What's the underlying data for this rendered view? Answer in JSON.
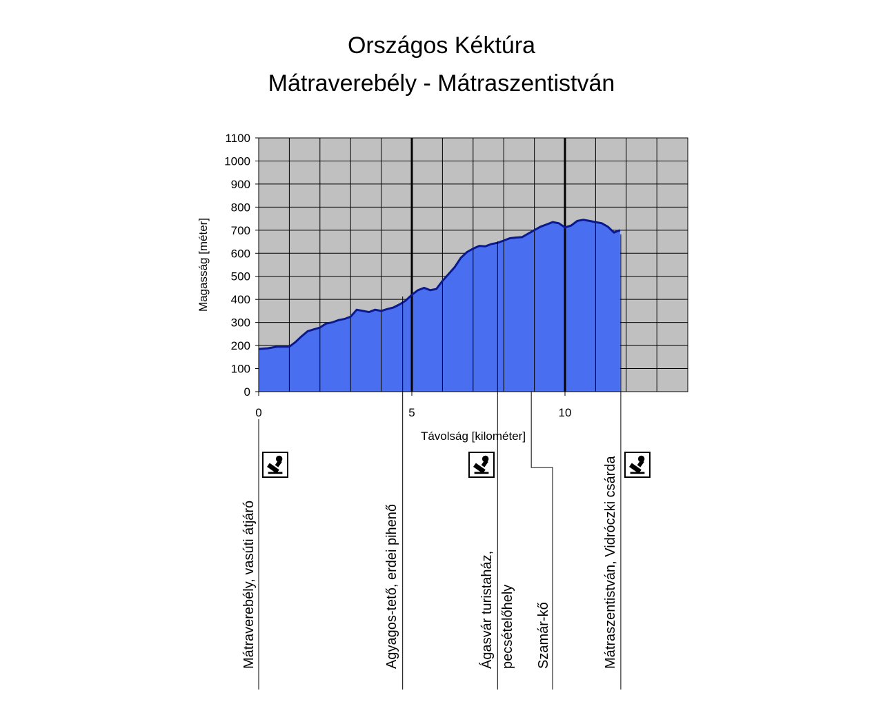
{
  "title": "Országos Kéktúra",
  "subtitle": "Mátraverebély - Mátraszentistván",
  "chart_data": {
    "type": "area",
    "xlabel": "Távolság [kilométer]",
    "ylabel": "Magasság [méter]",
    "xlim": [
      0,
      14
    ],
    "ylim": [
      0,
      1100
    ],
    "y_ticks": [
      0,
      100,
      200,
      300,
      400,
      500,
      600,
      700,
      800,
      900,
      1000,
      1100
    ],
    "x_tick_labels": [
      {
        "x": 0,
        "label": "0"
      },
      {
        "x": 5,
        "label": "5"
      },
      {
        "x": 10,
        "label": "10"
      }
    ],
    "grid": true,
    "fill_color": "#4a6ef0",
    "line_color": "#0a1a8c",
    "plot_background": "#c0c0c0",
    "series": [
      {
        "x": [
          0,
          0.3,
          0.6,
          1.0,
          1.2,
          1.4,
          1.6,
          1.8,
          2.0,
          2.2,
          2.4,
          2.6,
          2.8,
          3.0,
          3.2,
          3.4,
          3.6,
          3.8,
          4.0,
          4.2,
          4.4,
          4.6,
          4.8,
          5.0,
          5.2,
          5.4,
          5.6,
          5.8,
          6.0,
          6.2,
          6.4,
          6.6,
          6.8,
          7.0,
          7.2,
          7.4,
          7.6,
          7.8,
          8.0,
          8.2,
          8.4,
          8.6,
          8.8,
          9.0,
          9.2,
          9.4,
          9.6,
          9.8,
          10.0,
          10.2,
          10.4,
          10.6,
          10.8,
          11.0,
          11.2,
          11.4,
          11.6,
          11.8
        ],
        "y": [
          185,
          188,
          195,
          195,
          215,
          240,
          262,
          270,
          278,
          295,
          300,
          310,
          315,
          325,
          355,
          350,
          345,
          355,
          350,
          358,
          365,
          378,
          395,
          420,
          440,
          450,
          440,
          445,
          480,
          510,
          540,
          580,
          605,
          620,
          632,
          630,
          640,
          645,
          655,
          665,
          668,
          670,
          685,
          700,
          715,
          725,
          735,
          730,
          712,
          720,
          740,
          745,
          740,
          735,
          730,
          715,
          690,
          700
        ]
      }
    ],
    "waypoints": [
      {
        "km": 0,
        "name": "Mátraverebély, vasúti átjáró",
        "stamp": true
      },
      {
        "km": 4.7,
        "name": "Agyagos-tető, erdei pihenő",
        "stamp": false
      },
      {
        "km": 7.8,
        "name": "Ágasvár turistaház,",
        "name2": "pecsételőhely",
        "stamp": true
      },
      {
        "km": 8.9,
        "name": "Szamár-kő",
        "stamp": false
      },
      {
        "km": 11.8,
        "name": "Mátraszentistván, Vidróczki csárda",
        "stamp": true
      }
    ]
  }
}
